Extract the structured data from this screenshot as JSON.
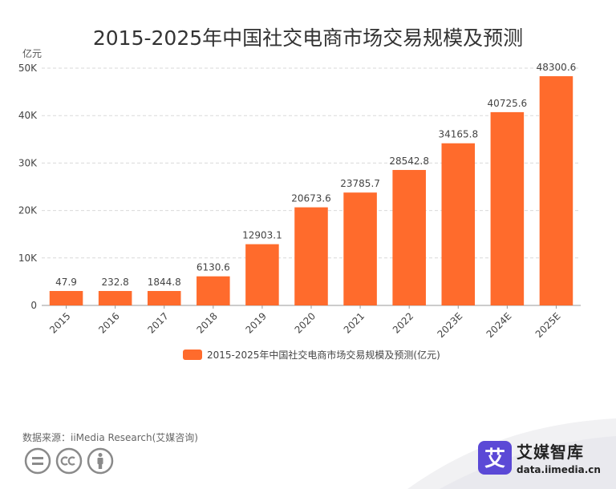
{
  "title": "2015-2025年中国社交电商市场交易规模及预测",
  "unit_label": "亿元",
  "source": "数据来源：iiMedia Research(艾媒咨询)",
  "brand": {
    "logo_char": "艾",
    "name": "艾媒智库",
    "url": "data.iimedia.cn"
  },
  "colors": {
    "bar": "#ff6b2c",
    "grid": "#d9d9d9",
    "axis": "#999999",
    "text": "#444444",
    "logo": "#5b49d6"
  },
  "chart_data": {
    "type": "bar",
    "title": "2015-2025年中国社交电商市场交易规模及预测",
    "ylabel": "亿元",
    "xlabel": "",
    "categories": [
      "2015",
      "2016",
      "2017",
      "2018",
      "2019",
      "2020",
      "2021",
      "2022",
      "2023E",
      "2024E",
      "2025E"
    ],
    "series": [
      {
        "name": "2015-2025年中国社交电商市场交易规模及预测(亿元)",
        "values": [
          47.9,
          232.8,
          1844.8,
          6130.6,
          12903.1,
          20673.6,
          23785.7,
          28542.8,
          34165.8,
          40725.6,
          48300.6
        ]
      }
    ],
    "data_labels": [
      "47.9",
      "232.8",
      "1844.8",
      "6130.6",
      "12903.1",
      "20673.6",
      "23785.7",
      "28542.8",
      "34165.8",
      "40725.6",
      "48300.6"
    ],
    "ylim": [
      0,
      50000
    ],
    "yticks": [
      0,
      10000,
      20000,
      30000,
      40000,
      50000
    ],
    "ytick_labels": [
      "0",
      "10K",
      "20K",
      "30K",
      "40K",
      "50K"
    ],
    "grid": true,
    "legend_position": "bottom"
  }
}
